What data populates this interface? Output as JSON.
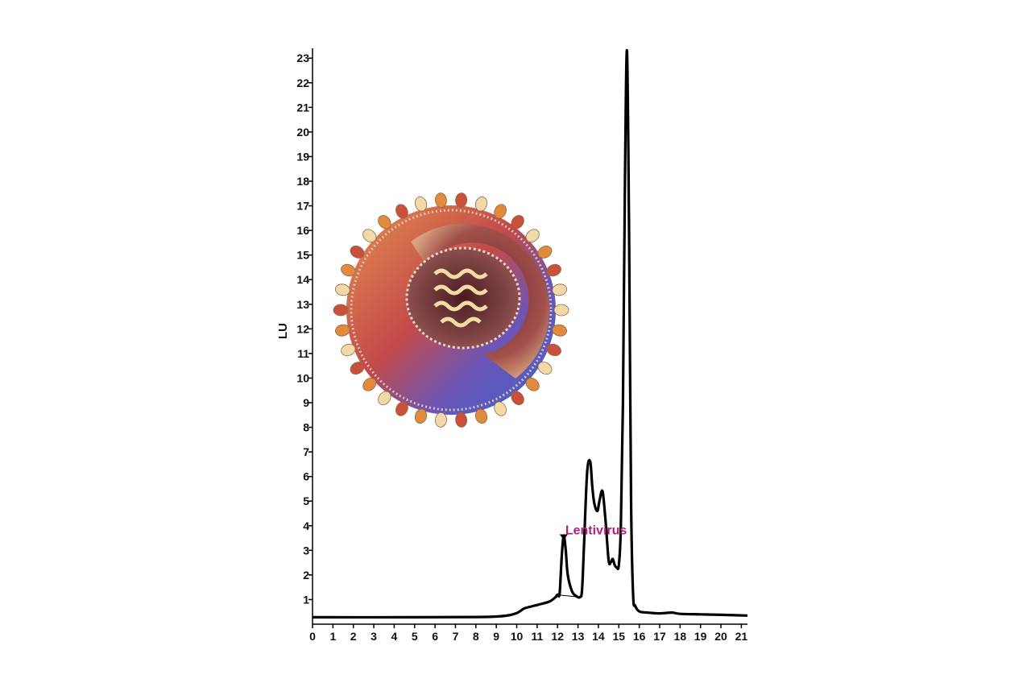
{
  "chart_data": {
    "type": "line",
    "title": "",
    "xlabel": "",
    "ylabel": "LU",
    "xlim": [
      0,
      21.3
    ],
    "ylim": [
      0,
      23.4
    ],
    "x_ticks": [
      "0",
      "1",
      "2",
      "3",
      "4",
      "5",
      "6",
      "7",
      "8",
      "9",
      "10",
      "11",
      "12",
      "13",
      "14",
      "15",
      "16",
      "17",
      "18",
      "19",
      "20",
      "21"
    ],
    "y_ticks": [
      "1",
      "2",
      "3",
      "4",
      "5",
      "6",
      "7",
      "8",
      "9",
      "10",
      "11",
      "12",
      "13",
      "14",
      "15",
      "16",
      "17",
      "18",
      "19",
      "20",
      "21",
      "22",
      "23"
    ],
    "grid": false,
    "line_color": "#000000",
    "series": [
      {
        "x": [
          0,
          5,
          8,
          9,
          9.6,
          10,
          10.2,
          10.4,
          11,
          11.6,
          11.9,
          12.0,
          12.1,
          12.2,
          12.3,
          12.4,
          12.5,
          12.7,
          12.9,
          13.1,
          13.2,
          13.3,
          13.45,
          13.6,
          13.7,
          13.8,
          13.95,
          14.05,
          14.2,
          14.35,
          14.5,
          14.6,
          14.7,
          14.8,
          14.9,
          15.0,
          15.1,
          15.2,
          15.3,
          15.4,
          15.5,
          15.6,
          15.7,
          15.8,
          16.0,
          16.4,
          17,
          17.6,
          18,
          19,
          20,
          21.3
        ],
        "y": [
          0.28,
          0.28,
          0.29,
          0.31,
          0.36,
          0.45,
          0.55,
          0.65,
          0.78,
          0.92,
          1.1,
          1.2,
          1.25,
          2.7,
          3.6,
          3.0,
          2.0,
          1.35,
          1.15,
          1.1,
          1.4,
          3.3,
          6.2,
          6.6,
          5.6,
          4.9,
          4.6,
          5.0,
          5.4,
          4.2,
          2.6,
          2.5,
          2.65,
          2.4,
          2.3,
          2.4,
          4.0,
          9.0,
          18.0,
          23.3,
          16.0,
          5.0,
          1.2,
          0.75,
          0.52,
          0.47,
          0.44,
          0.47,
          0.42,
          0.4,
          0.38,
          0.35
        ]
      }
    ],
    "annotation": {
      "text": "Lentivirus",
      "x": 12.3,
      "y": 3.65,
      "color": "#b0207f"
    },
    "baseline_segment": {
      "x": [
        11.9,
        13.1
      ],
      "y": [
        1.2,
        1.1
      ]
    }
  },
  "illustration": {
    "subject": "virus-particle-illustration",
    "colors": [
      "#c9503a",
      "#e28a3c",
      "#7b5bb5",
      "#4a64c8",
      "#f2d9a8",
      "#8a2f3c"
    ]
  }
}
